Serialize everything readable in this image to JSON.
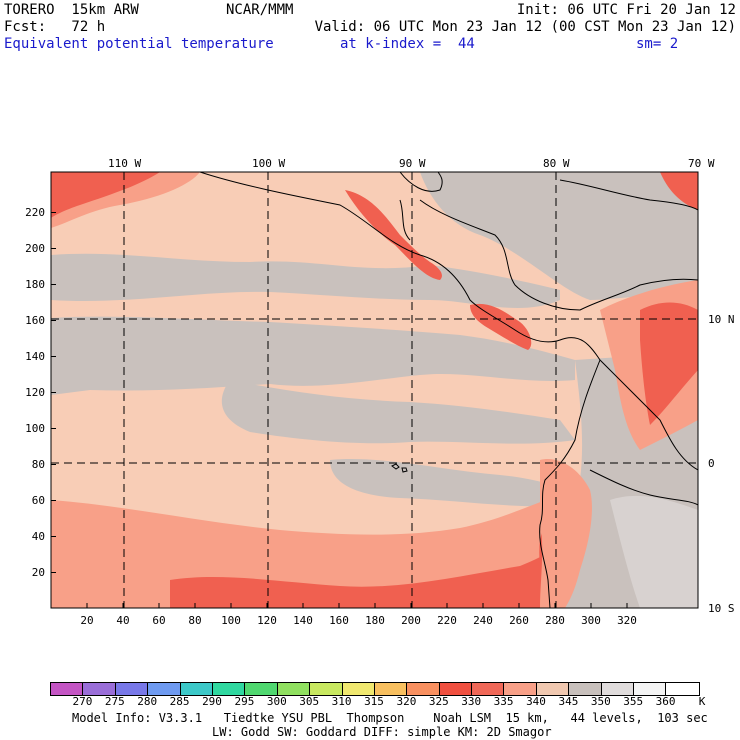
{
  "header": {
    "model": "TORERO  15km ARW",
    "center": "NCAR/MMM",
    "init": "Init: 06 UTC Fri 20 Jan 12",
    "fcst": "Fcst:   72 h",
    "valid": "Valid: 06 UTC Mon 23 Jan 12 (00 CST Mon 23 Jan 12)",
    "field": "Equivalent potential temperature",
    "level": "at k-index =  44",
    "smooth": "sm= 2"
  },
  "axes": {
    "x_ticks": [
      "20",
      "40",
      "60",
      "80",
      "100",
      "120",
      "140",
      "160",
      "180",
      "200",
      "220",
      "240",
      "260",
      "280",
      "300",
      "320"
    ],
    "y_ticks": [
      "20",
      "40",
      "60",
      "80",
      "100",
      "120",
      "140",
      "160",
      "180",
      "200",
      "220"
    ],
    "lon_labels": [
      "110 W",
      "100 W",
      "90 W",
      "80 W",
      "70 W"
    ],
    "lat_labels": [
      "10 N",
      "0",
      "10 S"
    ]
  },
  "colorbar": {
    "labels": [
      "270",
      "275",
      "280",
      "285",
      "290",
      "295",
      "300",
      "305",
      "310",
      "315",
      "320",
      "325",
      "330",
      "335",
      "340",
      "345",
      "350",
      "355",
      "360"
    ],
    "unit": "K",
    "colors": [
      "#c455c4",
      "#9a6ed8",
      "#7878e8",
      "#6e9af0",
      "#3cc8c8",
      "#30d8a0",
      "#50d870",
      "#90e060",
      "#c8e860",
      "#f0e870",
      "#f8c060",
      "#f89060",
      "#f05040",
      "#f06858",
      "#f8a088",
      "#f0c8b0",
      "#c8c0bc",
      "#e0dcdc",
      "#f4f4f4",
      "#ffffff"
    ]
  },
  "footer": {
    "line1": "Model Info: V3.3.1   Tiedtke YSU PBL  Thompson    Noah LSM  15 km,   44 levels,  103 sec",
    "line2": "LW: Godd SW: Goddard DIFF: simple KM: 2D Smagor"
  },
  "palette": {
    "peach": "#f8cdb6",
    "gray": "#c9c1bd",
    "salmon": "#f8a088",
    "red": "#f06050",
    "ltgray": "#d8d2d0"
  }
}
